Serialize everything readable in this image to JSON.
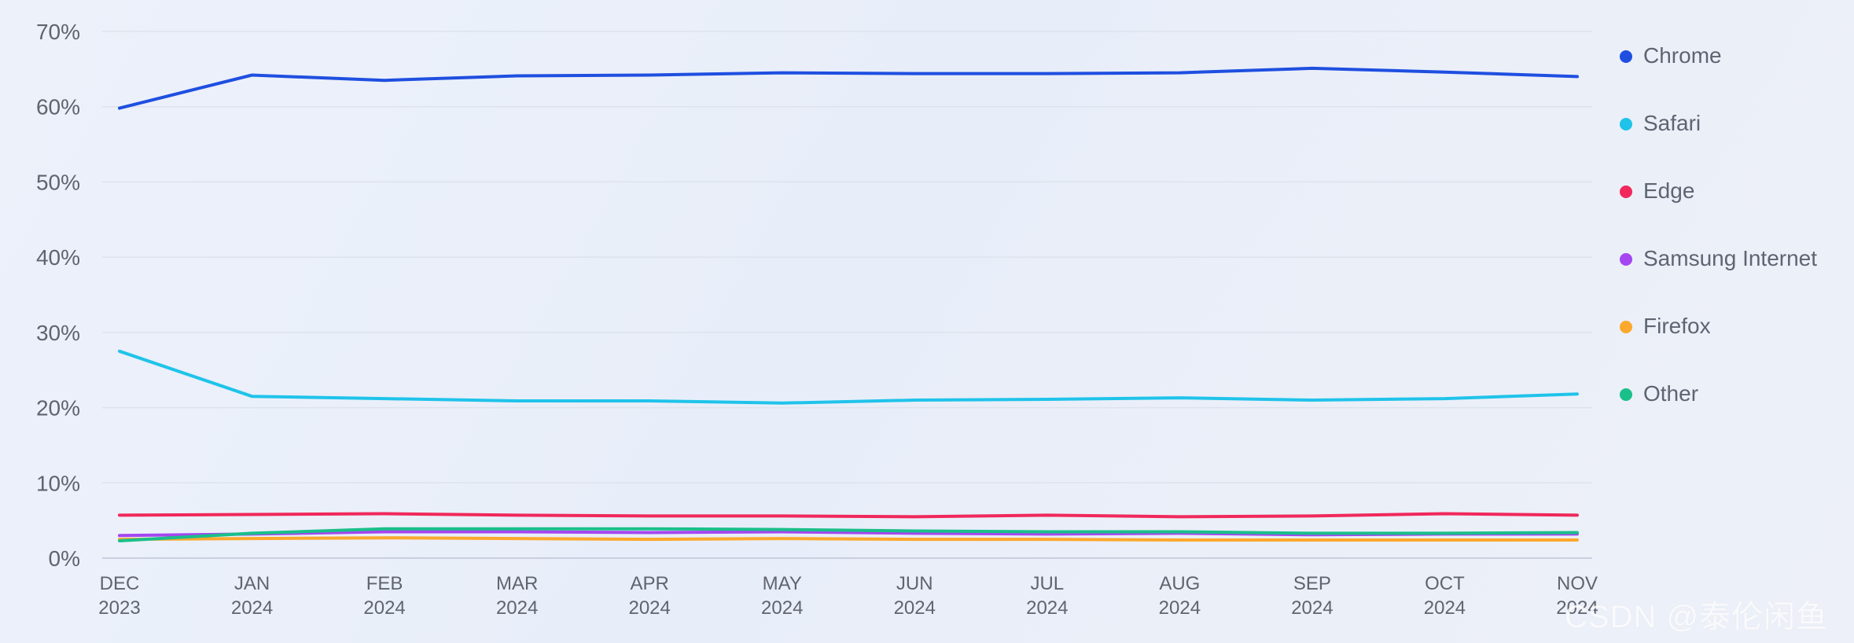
{
  "chart_data": {
    "type": "line",
    "title": "",
    "xlabel": "",
    "ylabel": "",
    "grid": true,
    "legend_position": "right",
    "ylim": [
      0,
      70
    ],
    "y_ticks": [
      "0%",
      "10%",
      "20%",
      "30%",
      "40%",
      "50%",
      "60%",
      "70%"
    ],
    "x": [
      {
        "month": "DEC",
        "year": "2023"
      },
      {
        "month": "JAN",
        "year": "2024"
      },
      {
        "month": "FEB",
        "year": "2024"
      },
      {
        "month": "MAR",
        "year": "2024"
      },
      {
        "month": "APR",
        "year": "2024"
      },
      {
        "month": "MAY",
        "year": "2024"
      },
      {
        "month": "JUN",
        "year": "2024"
      },
      {
        "month": "JUL",
        "year": "2024"
      },
      {
        "month": "AUG",
        "year": "2024"
      },
      {
        "month": "SEP",
        "year": "2024"
      },
      {
        "month": "OCT",
        "year": "2024"
      },
      {
        "month": "NOV",
        "year": "2024"
      }
    ],
    "series": [
      {
        "name": "Chrome",
        "color": "#1f4fe0",
        "values": [
          59.8,
          64.2,
          63.5,
          64.1,
          64.2,
          64.5,
          64.4,
          64.4,
          64.5,
          65.1,
          64.6,
          64.0
        ]
      },
      {
        "name": "Safari",
        "color": "#1fc3ea",
        "values": [
          27.5,
          21.5,
          21.2,
          20.9,
          20.9,
          20.6,
          21.0,
          21.1,
          21.3,
          21.0,
          21.2,
          21.8
        ]
      },
      {
        "name": "Edge",
        "color": "#f0285b",
        "values": [
          5.7,
          5.8,
          5.9,
          5.7,
          5.6,
          5.6,
          5.5,
          5.7,
          5.5,
          5.6,
          5.9,
          5.7
        ]
      },
      {
        "name": "Samsung Internet",
        "color": "#a546f0",
        "values": [
          3.0,
          3.2,
          3.5,
          3.5,
          3.4,
          3.5,
          3.3,
          3.2,
          3.3,
          3.1,
          3.2,
          3.2
        ]
      },
      {
        "name": "Firefox",
        "color": "#fca82d",
        "values": [
          2.5,
          2.6,
          2.7,
          2.6,
          2.5,
          2.6,
          2.5,
          2.5,
          2.4,
          2.4,
          2.4,
          2.4
        ]
      },
      {
        "name": "Other",
        "color": "#1abf8a",
        "values": [
          2.3,
          3.3,
          3.9,
          3.9,
          3.9,
          3.8,
          3.6,
          3.5,
          3.5,
          3.3,
          3.3,
          3.4
        ]
      }
    ]
  },
  "watermark": "CSDN @泰伦闲鱼"
}
